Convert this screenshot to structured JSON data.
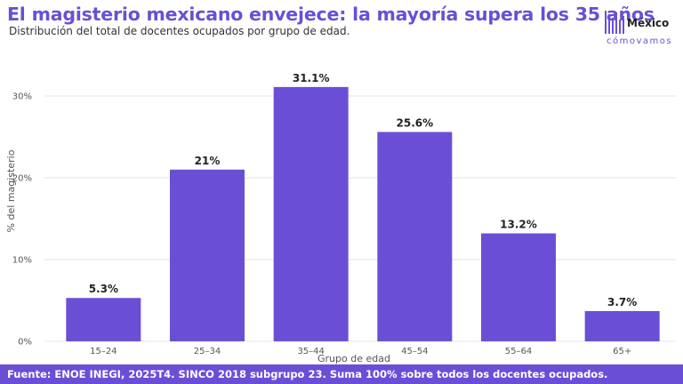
{
  "header": {
    "title": "El magisterio mexicano envejece: la mayoría supera los 35 años",
    "subtitle": "Distribución del total de docentes ocupados por grupo de edad."
  },
  "logo": {
    "name_top": "México",
    "name_bottom": "cómovamos"
  },
  "footer": {
    "source": "Fuente: ENOE INEGI, 2025T4. SINCO 2018 subgrupo 23. Suma 100% sobre todos los docentes ocupados."
  },
  "colors": {
    "accent": "#6a4fd6",
    "bar": "#6a4fd6"
  },
  "chart_data": {
    "type": "bar",
    "categories": [
      "15–24",
      "25–34",
      "35–44",
      "45–54",
      "55–64",
      "65+"
    ],
    "values": [
      5.3,
      21,
      31.1,
      25.6,
      13.2,
      3.7
    ],
    "data_labels": [
      "5.3%",
      "21%",
      "31.1%",
      "25.6%",
      "13.2%",
      "3.7%"
    ],
    "xlabel": "Grupo de edad",
    "ylabel": "% del magisterio",
    "ylim": [
      0,
      30
    ],
    "yticks": [
      0,
      10,
      20,
      30
    ],
    "ytick_labels": [
      "0%",
      "10%",
      "20%",
      "30%"
    ],
    "grid": true,
    "legend": "none"
  }
}
